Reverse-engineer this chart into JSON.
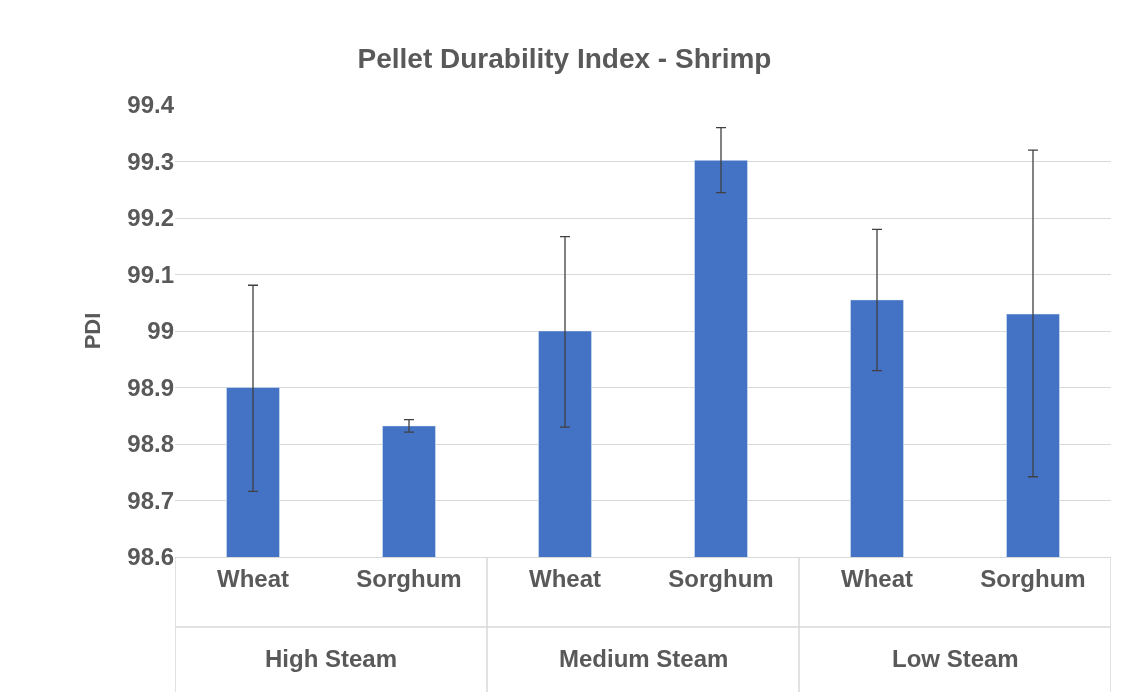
{
  "chart_data": {
    "type": "bar",
    "title": "Pellet Durability Index - Shrimp",
    "ylabel": "PDI",
    "categories": [
      "Wheat",
      "Sorghum",
      "Wheat",
      "Sorghum",
      "Wheat",
      "Sorghum"
    ],
    "series": [
      {
        "color": "#4472c4",
        "values": [
          98.9,
          98.832,
          99.0,
          99.302,
          99.055,
          99.03
        ],
        "errors": [
          [
            98.716,
            99.081
          ],
          [
            98.821,
            98.843
          ],
          [
            98.83,
            99.167
          ],
          [
            99.245,
            99.36
          ],
          [
            98.93,
            99.18
          ],
          [
            98.742,
            99.32
          ]
        ]
      }
    ],
    "annotations": [
      "High Steam",
      "Medium Steam",
      "Low Steam"
    ],
    "ylim": [
      98.6,
      99.4
    ],
    "yticks": [
      98.6,
      98.7,
      98.8,
      98.9,
      99,
      99.1,
      99.2,
      99.3,
      99.4
    ],
    "grid": "y"
  }
}
